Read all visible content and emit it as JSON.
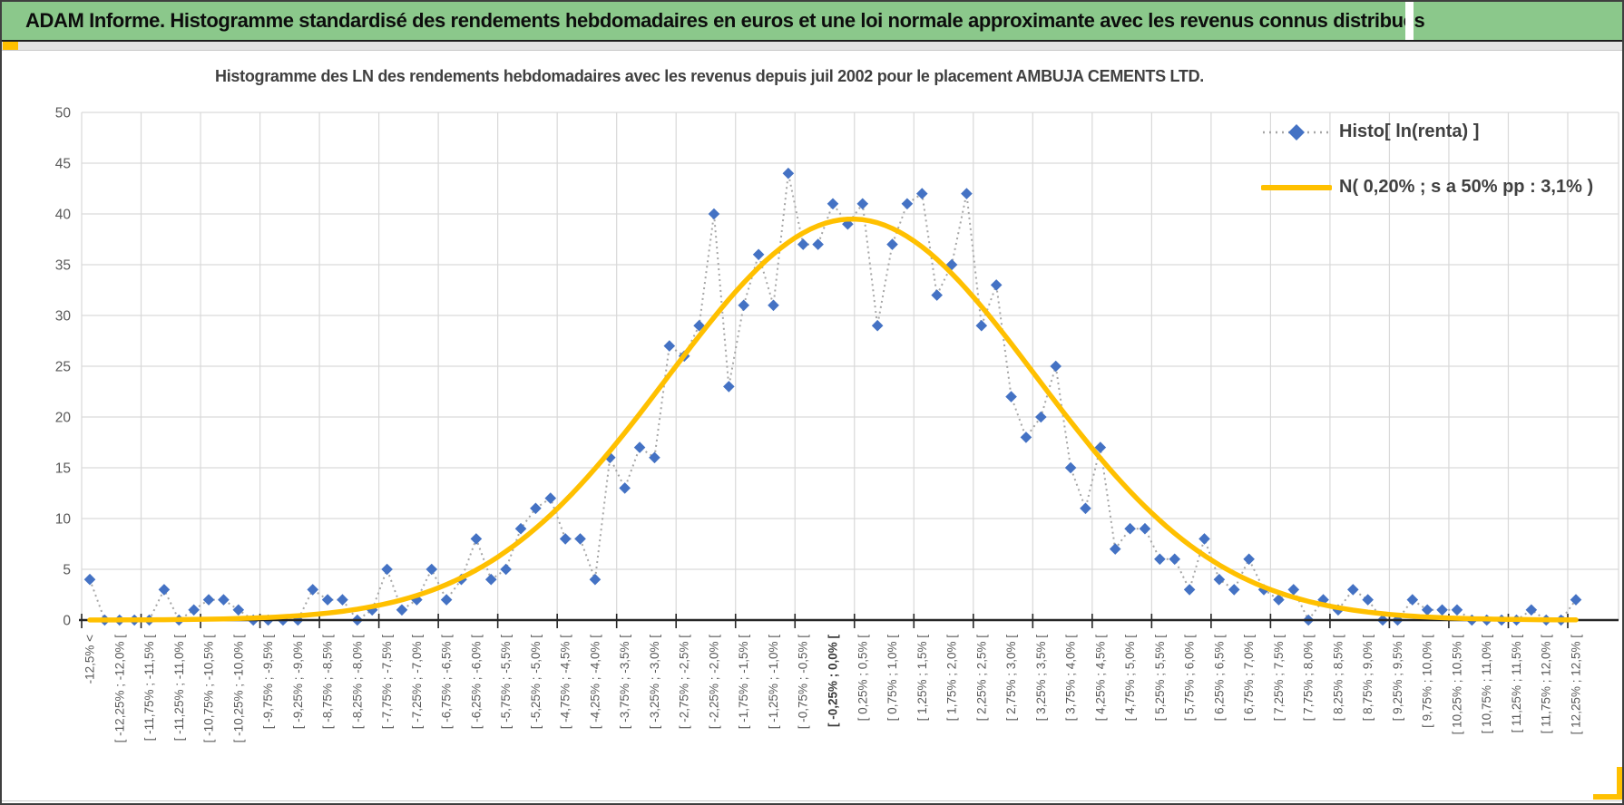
{
  "banner": {
    "title": "ADAM Informe. Histogramme standardisé des rendements hebdomadaires en euros et une loi normale approximante avec les revenus connus distribués"
  },
  "colors": {
    "banner_green": "#8bc88b",
    "accent_gold": "#ffc000",
    "marker_blue": "#4472c4",
    "dotted_gray": "#a6a6a6",
    "gridline": "#d9d9d9",
    "axis_black": "#262626",
    "tick_text": "#595959",
    "title_text": "#404040"
  },
  "chart_data": {
    "type": "line",
    "title": "Histogramme des LN des rendements hebdomadaires avec les revenus depuis juil 2002 pour le placement AMBUJA CEMENTS LTD.",
    "xlabel": "",
    "ylabel": "",
    "ylim": [
      0,
      50
    ],
    "y_ticks": [
      0,
      5,
      10,
      15,
      20,
      25,
      30,
      35,
      40,
      45,
      50
    ],
    "grid": true,
    "legend_position": "top-right",
    "n_categories": 101,
    "x_labels_shown_every_other": true,
    "x_labels": [
      "-12,5% <",
      "[ -12,25% ; -12,0% [",
      "[ -11,75% ; -11,5% [",
      "[ -11,25% ; -11,0% [",
      "[ -10,75% ; -10,5% [",
      "[ -10,25% ; -10,0% [",
      "[ -9,75% ; -9,5% [",
      "[ -9,25% ; -9,0% [",
      "[ -8,75% ; -8,5% [",
      "[ -8,25% ; -8,0% [",
      "[ -7,75% ; -7,5% [",
      "[ -7,25% ; -7,0% [",
      "[ -6,75% ; -6,5% [",
      "[ -6,25% ; -6,0% [",
      "[ -5,75% ; -5,5% [",
      "[ -5,25% ; -5,0% [",
      "[ -4,75% ; -4,5% [",
      "[ -4,25% ; -4,0% [",
      "[ -3,75% ; -3,5% [",
      "[ -3,25% ; -3,0% [",
      "[ -2,75% ; -2,5% [",
      "[ -2,25% ; -2,0% [",
      "[ -1,75% ; -1,5% [",
      "[ -1,25% ; -1,0% [",
      "[ -0,75% ; -0,5% [",
      "[ -0,25% ; 0,0% [",
      "[ 0,25% ; 0,5% [",
      "[ 0,75% ; 1,0% [",
      "[ 1,25% ; 1,5% [",
      "[ 1,75% ; 2,0% [",
      "[ 2,25% ; 2,5% [",
      "[ 2,75% ; 3,0% [",
      "[ 3,25% ; 3,5% [",
      "[ 3,75% ; 4,0% [",
      "[ 4,25% ; 4,5% [",
      "[ 4,75% ; 5,0% [",
      "[ 5,25% ; 5,5% [",
      "[ 5,75% ; 6,0% [",
      "[ 6,25% ; 6,5% [",
      "[ 6,75% ; 7,0% [",
      "[ 7,25% ; 7,5% [",
      "[ 7,75% ; 8,0% [",
      "[ 8,25% ; 8,5% [",
      "[ 8,75% ; 9,0% [",
      "[ 9,25% ; 9,5% [",
      "[ 9,75% ; 10,0% [",
      "[ 10,25% ; 10,5% [",
      "[ 10,75% ; 11,0% [",
      "[ 11,25% ; 11,5% [",
      "[ 11,75% ; 12,0% [",
      "[ 12,25% ; 12,5% ["
    ],
    "bold_x_label": "[ -0,25% ; 0,0% [",
    "series": [
      {
        "name": "Histo[ ln(renta) ]",
        "style": "dotted-line-with-diamond-markers",
        "marker_color": "#4472c4",
        "line_color": "#a6a6a6",
        "values": [
          4,
          0,
          0,
          0,
          0,
          3,
          0,
          1,
          2,
          2,
          1,
          0,
          0,
          0,
          0,
          3,
          2,
          2,
          0,
          1,
          5,
          1,
          2,
          5,
          2,
          4,
          8,
          4,
          5,
          9,
          11,
          12,
          8,
          8,
          4,
          16,
          13,
          17,
          16,
          27,
          26,
          29,
          40,
          23,
          31,
          36,
          31,
          44,
          37,
          37,
          41,
          39,
          41,
          29,
          37,
          41,
          42,
          32,
          35,
          42,
          29,
          33,
          22,
          18,
          20,
          25,
          15,
          11,
          17,
          7,
          9,
          9,
          6,
          6,
          3,
          8,
          4,
          3,
          6,
          3,
          2,
          3,
          0,
          2,
          1,
          3,
          2,
          0,
          0,
          2,
          1,
          1,
          1,
          0,
          0,
          0,
          0,
          1,
          0,
          0,
          2
        ]
      },
      {
        "name": "N( 0,20% ; s a 50% pp : 3,1% )",
        "style": "smooth-line",
        "color": "#ffc000",
        "normal_params": {
          "mean_pct": 0.2,
          "sigma_pct": 3.1,
          "peak_y": 39.5,
          "bin_width_pct": 0.25,
          "first_bin_center_pct": -12.625
        }
      }
    ]
  }
}
